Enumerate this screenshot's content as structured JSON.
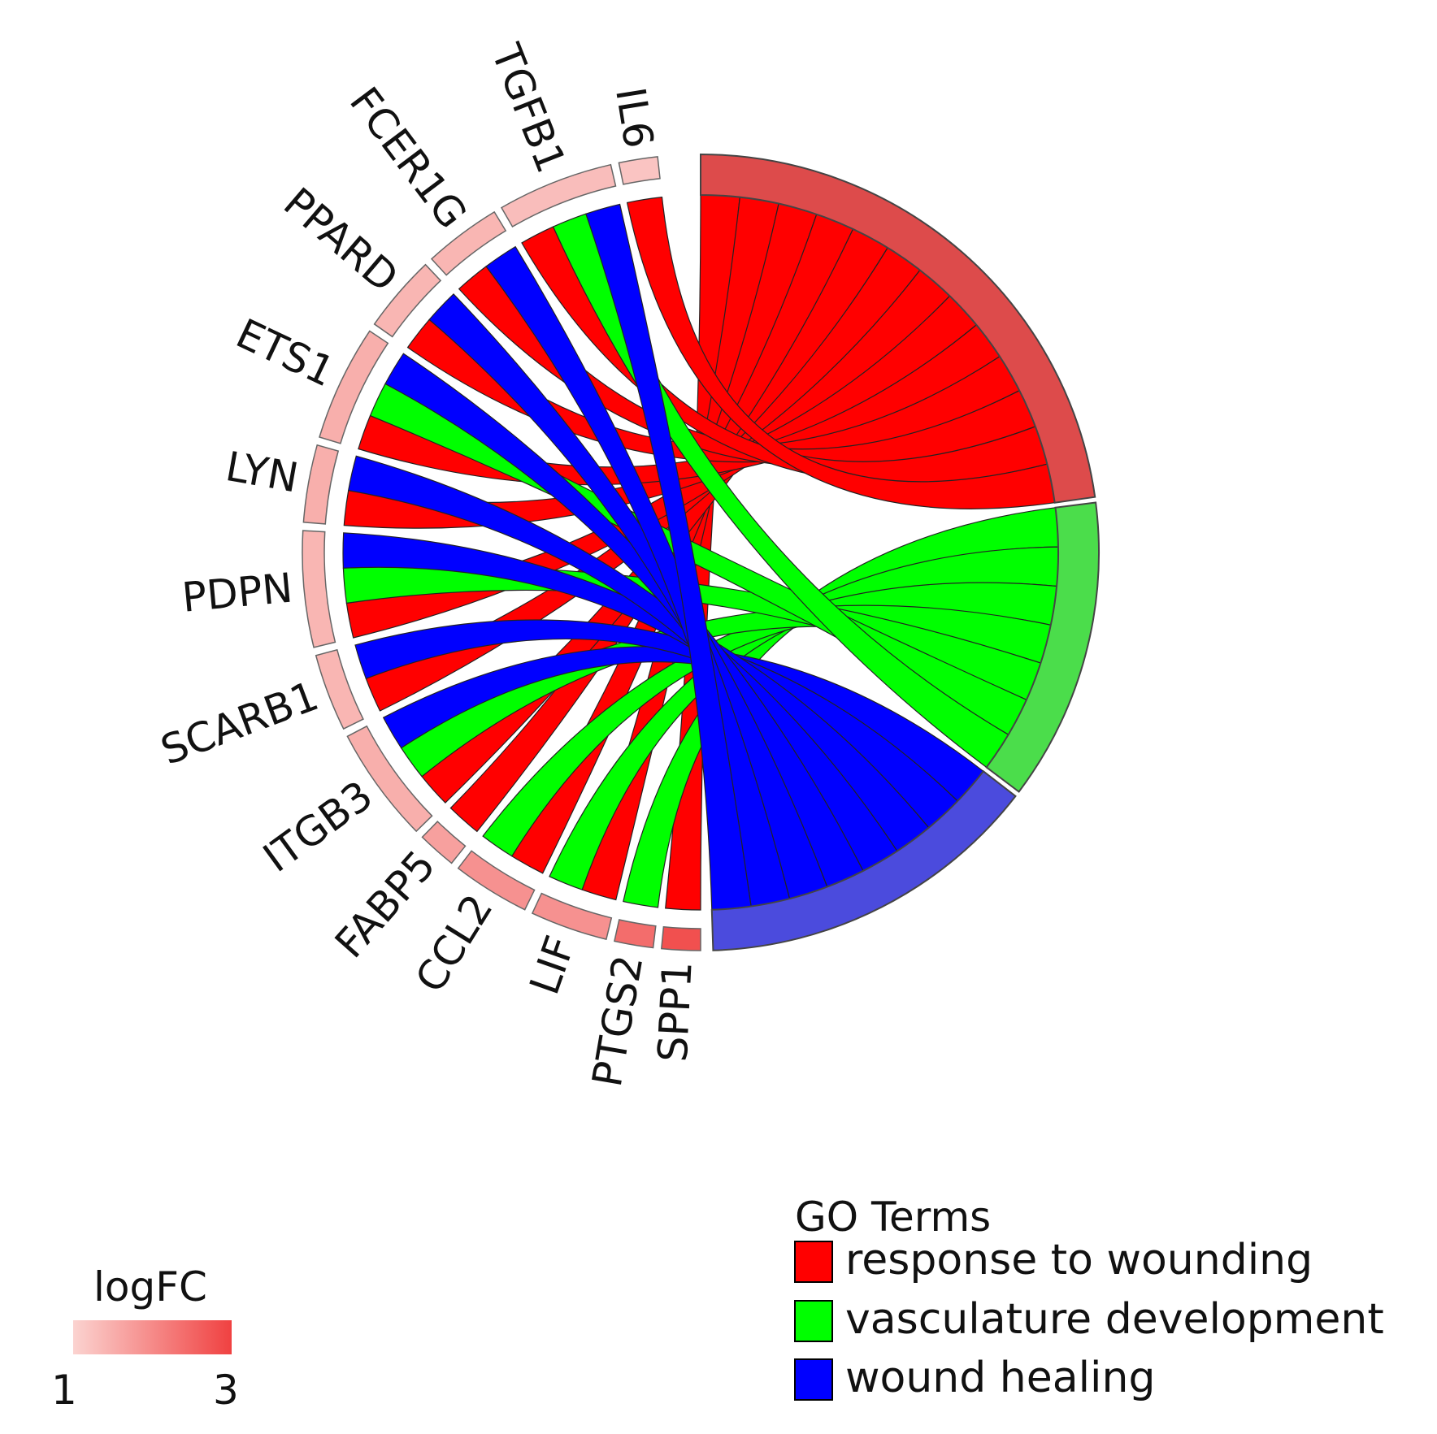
{
  "chart_data": {
    "type": "chord",
    "title": "",
    "genes": [
      {
        "name": "SPP1",
        "logFC": 2.8,
        "terms": [
          "response to wounding"
        ]
      },
      {
        "name": "PTGS2",
        "logFC": 2.4,
        "terms": [
          "vasculature development"
        ]
      },
      {
        "name": "LIF",
        "logFC": 1.9,
        "terms": [
          "response to wounding",
          "vasculature development"
        ]
      },
      {
        "name": "CCL2",
        "logFC": 1.9,
        "terms": [
          "response to wounding",
          "vasculature development"
        ]
      },
      {
        "name": "FABP5",
        "logFC": 1.7,
        "terms": [
          "response to wounding"
        ]
      },
      {
        "name": "ITGB3",
        "logFC": 1.5,
        "terms": [
          "response to wounding",
          "vasculature development",
          "wound healing"
        ]
      },
      {
        "name": "SCARB1",
        "logFC": 1.4,
        "terms": [
          "response to wounding",
          "wound healing"
        ]
      },
      {
        "name": "PDPN",
        "logFC": 1.4,
        "terms": [
          "response to wounding",
          "vasculature development",
          "wound healing"
        ]
      },
      {
        "name": "LYN",
        "logFC": 1.5,
        "terms": [
          "response to wounding",
          "wound healing"
        ]
      },
      {
        "name": "ETS1",
        "logFC": 1.5,
        "terms": [
          "response to wounding",
          "vasculature development",
          "wound healing"
        ]
      },
      {
        "name": "PPARD",
        "logFC": 1.4,
        "terms": [
          "response to wounding",
          "wound healing"
        ]
      },
      {
        "name": "FCER1G",
        "logFC": 1.4,
        "terms": [
          "response to wounding",
          "wound healing"
        ]
      },
      {
        "name": "TGFB1",
        "logFC": 1.3,
        "terms": [
          "response to wounding",
          "vasculature development",
          "wound healing"
        ]
      },
      {
        "name": "IL6",
        "logFC": 1.2,
        "terms": [
          "response to wounding"
        ]
      }
    ],
    "go_terms": [
      {
        "name": "response to wounding",
        "color": "#ff0000",
        "segment_color": "#dd4b4b"
      },
      {
        "name": "vasculature development",
        "color": "#00ff00",
        "segment_color": "#4bdd4b"
      },
      {
        "name": "wound healing",
        "color": "#0000ff",
        "segment_color": "#4b4bdd"
      }
    ],
    "legend": {
      "title": "GO Terms",
      "position": "bottom-right"
    },
    "logfc_scale": {
      "title": "logFC",
      "min": 1,
      "max": 3,
      "low_color": "#fbd3d0",
      "high_color": "#f04141",
      "position": "bottom-left"
    }
  }
}
